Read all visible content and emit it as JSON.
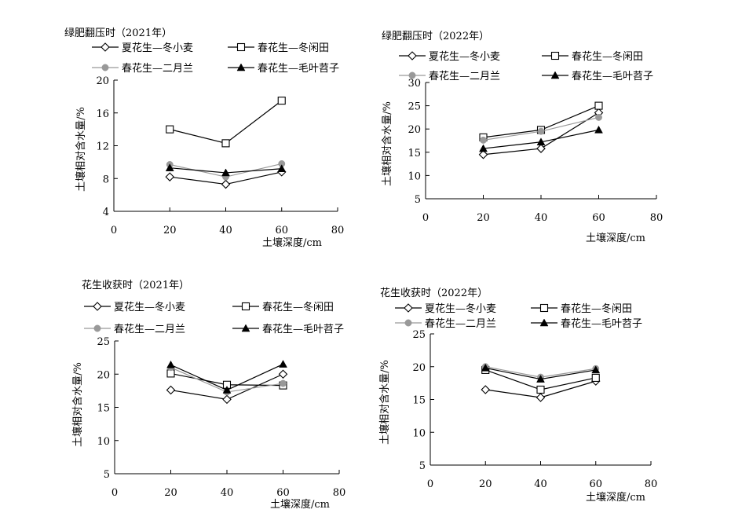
{
  "chart_data": [
    {
      "type": "line",
      "title": "绿肥翻压时（2021年）",
      "xlabel": "土壤深度/cm",
      "ylabel": "土壤相对含水量/%",
      "xlim": [
        0,
        80
      ],
      "ylim": [
        4,
        20
      ],
      "xticks": [
        0,
        20,
        40,
        60,
        80
      ],
      "yticks": [
        4,
        8,
        12,
        16,
        20
      ],
      "x": [
        20,
        40,
        60
      ],
      "series": [
        {
          "name": "夏花生—冬小麦",
          "marker": "diamond-open",
          "color": "#000000",
          "values": [
            8.2,
            7.3,
            8.8
          ]
        },
        {
          "name": "春花生—冬闲田",
          "marker": "square-open",
          "color": "#000000",
          "values": [
            14.0,
            12.3,
            17.5
          ]
        },
        {
          "name": "春花生—二月兰",
          "marker": "circle-filled",
          "color": "#999999",
          "values": [
            9.7,
            8.2,
            9.8
          ]
        },
        {
          "name": "春花生—毛叶苕子",
          "marker": "triangle-filled",
          "color": "#000000",
          "values": [
            9.3,
            8.7,
            9.2
          ]
        }
      ]
    },
    {
      "type": "line",
      "title": "绿肥翻压时（2022年）",
      "xlabel": "土壤深度/cm",
      "ylabel": "土壤相对含水量/%",
      "xlim": [
        0,
        80
      ],
      "ylim": [
        5,
        30
      ],
      "xticks": [
        0,
        20,
        40,
        60,
        80
      ],
      "yticks": [
        5,
        10,
        15,
        20,
        25,
        30
      ],
      "x": [
        20,
        40,
        60
      ],
      "series": [
        {
          "name": "夏花生—冬小麦",
          "marker": "diamond-open",
          "color": "#000000",
          "values": [
            14.5,
            15.8,
            23.5
          ]
        },
        {
          "name": "春花生—冬闲田",
          "marker": "square-open",
          "color": "#000000",
          "values": [
            18.2,
            19.8,
            25.0
          ]
        },
        {
          "name": "春花生—二月兰",
          "marker": "circle-filled",
          "color": "#999999",
          "values": [
            17.6,
            19.5,
            22.5
          ]
        },
        {
          "name": "春花生—毛叶苕子",
          "marker": "triangle-filled",
          "color": "#000000",
          "values": [
            15.8,
            17.2,
            19.8
          ]
        }
      ]
    },
    {
      "type": "line",
      "title": "花生收获时（2021年）",
      "xlabel": "土壤深度/cm",
      "ylabel": "土壤相对含水量/%",
      "xlim": [
        0,
        80
      ],
      "ylim": [
        5,
        25
      ],
      "xticks": [
        0,
        20,
        40,
        60,
        80
      ],
      "yticks": [
        5,
        10,
        15,
        20,
        25
      ],
      "x": [
        20,
        40,
        60
      ],
      "series": [
        {
          "name": "夏花生—冬小麦",
          "marker": "diamond-open",
          "color": "#000000",
          "values": [
            17.6,
            16.2,
            20.0
          ]
        },
        {
          "name": "春花生—冬闲田",
          "marker": "square-open",
          "color": "#000000",
          "values": [
            20.1,
            18.4,
            18.3
          ]
        },
        {
          "name": "春花生—二月兰",
          "marker": "circle-filled",
          "color": "#999999",
          "values": [
            21.0,
            17.3,
            18.6
          ]
        },
        {
          "name": "春花生—毛叶苕子",
          "marker": "triangle-filled",
          "color": "#000000",
          "values": [
            21.4,
            17.6,
            21.5
          ]
        }
      ]
    },
    {
      "type": "line",
      "title": "花生收获时（2022年）",
      "xlabel": "土壤深度/cm",
      "ylabel": "土壤相对含水量/%",
      "xlim": [
        0,
        80
      ],
      "ylim": [
        5,
        25
      ],
      "xticks": [
        0,
        20,
        40,
        60,
        80
      ],
      "yticks": [
        5,
        10,
        15,
        20,
        25
      ],
      "x": [
        20,
        40,
        60
      ],
      "series": [
        {
          "name": "夏花生—冬小麦",
          "marker": "diamond-open",
          "color": "#000000",
          "values": [
            16.5,
            15.3,
            17.8
          ]
        },
        {
          "name": "春花生—冬闲田",
          "marker": "square-open",
          "color": "#000000",
          "values": [
            19.5,
            16.5,
            18.3
          ]
        },
        {
          "name": "春花生—二月兰",
          "marker": "circle-filled",
          "color": "#999999",
          "values": [
            20.0,
            18.4,
            19.7
          ]
        },
        {
          "name": "春花生—毛叶苕子",
          "marker": "triangle-filled",
          "color": "#000000",
          "values": [
            19.8,
            18.1,
            19.5
          ]
        }
      ]
    }
  ]
}
